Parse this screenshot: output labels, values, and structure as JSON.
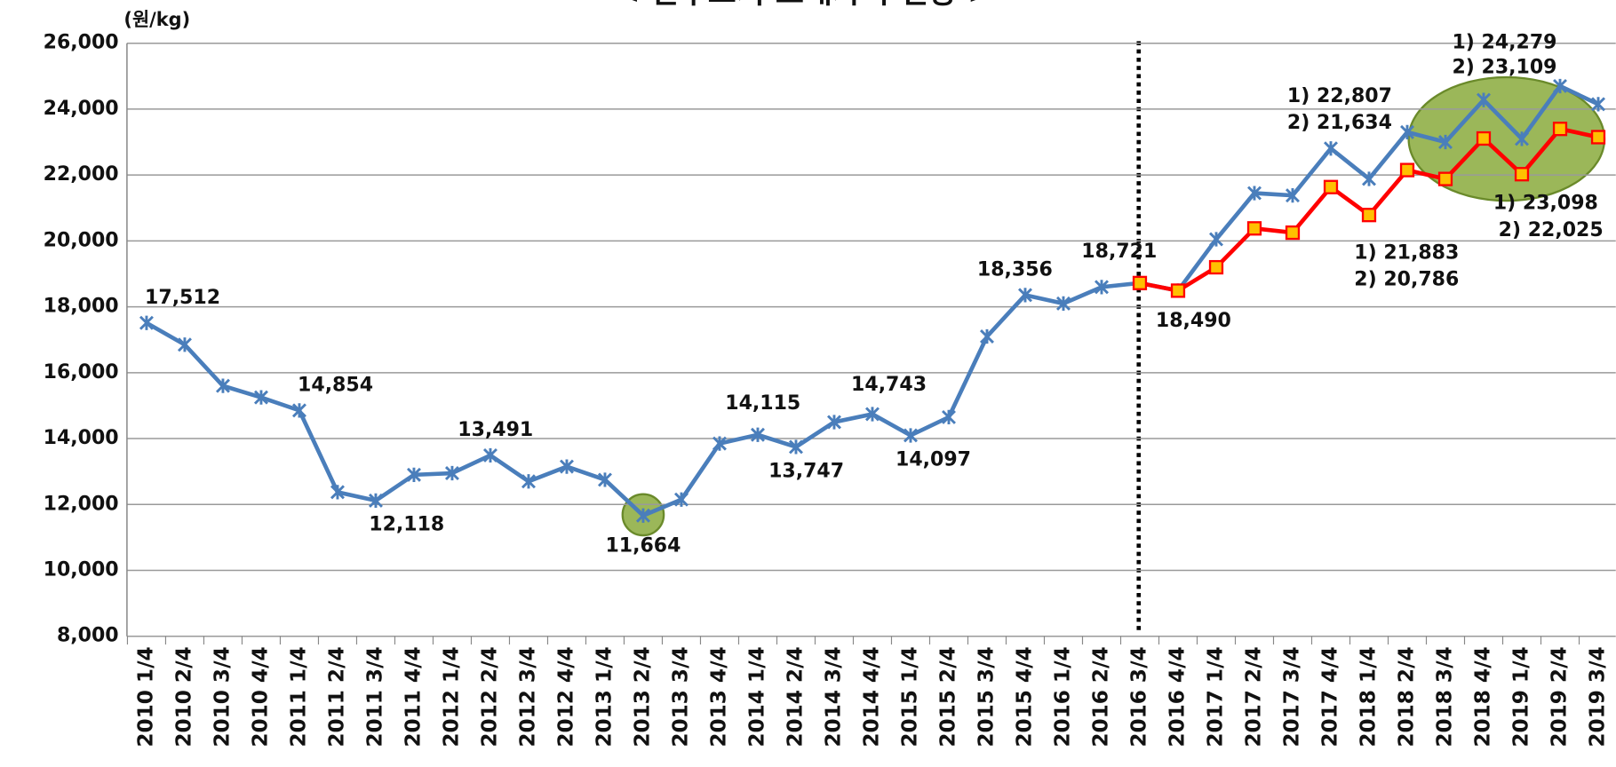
{
  "chart_data": {
    "type": "line",
    "title": "< 한우고기 도매가격 전망 >",
    "y_label": "(원/kg)",
    "categories": [
      "2010 1/4",
      "2010 2/4",
      "2010 3/4",
      "2010 4/4",
      "2011 1/4",
      "2011 2/4",
      "2011 3/4",
      "2011 4/4",
      "2012 1/4",
      "2012 2/4",
      "2012 3/4",
      "2012 4/4",
      "2013 1/4",
      "2013 2/4",
      "2013 3/4",
      "2013 4/4",
      "2014 1/4",
      "2014 2/4",
      "2014 3/4",
      "2014 4/4",
      "2015 1/4",
      "2015 2/4",
      "2015 3/4",
      "2015 4/4",
      "2016 1/4",
      "2016 2/4",
      "2016 3/4",
      "2016 4/4",
      "2017 1/4",
      "2017 2/4",
      "2017 3/4",
      "2017 4/4",
      "2018 1/4",
      "2018 2/4",
      "2018 3/4",
      "2018 4/4",
      "2019 1/4",
      "2019 2/4",
      "2019 3/4"
    ],
    "series": [
      {
        "color": "#4a7ebb",
        "marker": "x",
        "values": [
          17512,
          16850,
          15600,
          15250,
          14854,
          12375,
          12118,
          12900,
          12950,
          13491,
          12700,
          13150,
          12750,
          11664,
          12150,
          13850,
          14115,
          13747,
          14500,
          14743,
          14097,
          14650,
          17100,
          18356,
          18100,
          18600,
          18721,
          18490,
          20050,
          21450,
          21380,
          22807,
          21883,
          23300,
          23000,
          24279,
          23098,
          24700,
          24150
        ],
        "value_labels": [
          "17,512",
          null,
          null,
          null,
          "14,854",
          null,
          "12,118",
          null,
          null,
          "13,491",
          null,
          null,
          null,
          "11,664",
          null,
          null,
          "14,115",
          "13,747",
          null,
          "14,743",
          "14,097",
          null,
          null,
          "18,356",
          null,
          null,
          "18,721",
          "18,490",
          null,
          null,
          null,
          null,
          null,
          null,
          null,
          null,
          null,
          null,
          null
        ]
      },
      {
        "color": "#ff0000",
        "marker_fill": "#ffc000",
        "marker": "square",
        "values": [
          null,
          null,
          null,
          null,
          null,
          null,
          null,
          null,
          null,
          null,
          null,
          null,
          null,
          null,
          null,
          null,
          null,
          null,
          null,
          null,
          null,
          null,
          null,
          null,
          null,
          null,
          18721,
          18490,
          19200,
          20380,
          20250,
          21634,
          20786,
          22150,
          21880,
          23109,
          22025,
          23400,
          23150
        ]
      }
    ],
    "annotations": [
      "1) 22,807",
      "2) 21,634",
      "1) 24,279",
      "2) 23,109",
      "1) 21,883",
      "2) 20,786",
      "1) 23,098",
      "2) 22,025"
    ],
    "ylim": [
      8000,
      26000
    ],
    "yticks": [
      {
        "value": 8000,
        "label": "8,000"
      },
      {
        "value": 10000,
        "label": "10,000"
      },
      {
        "value": 12000,
        "label": "12,000"
      },
      {
        "value": 14000,
        "label": "14,000"
      },
      {
        "value": 16000,
        "label": "16,000"
      },
      {
        "value": 18000,
        "label": "18,000"
      },
      {
        "value": 20000,
        "label": "20,000"
      },
      {
        "value": 22000,
        "label": "22,000"
      },
      {
        "value": 24000,
        "label": "24,000"
      },
      {
        "value": 26000,
        "label": "26,000"
      }
    ],
    "grid": true
  }
}
